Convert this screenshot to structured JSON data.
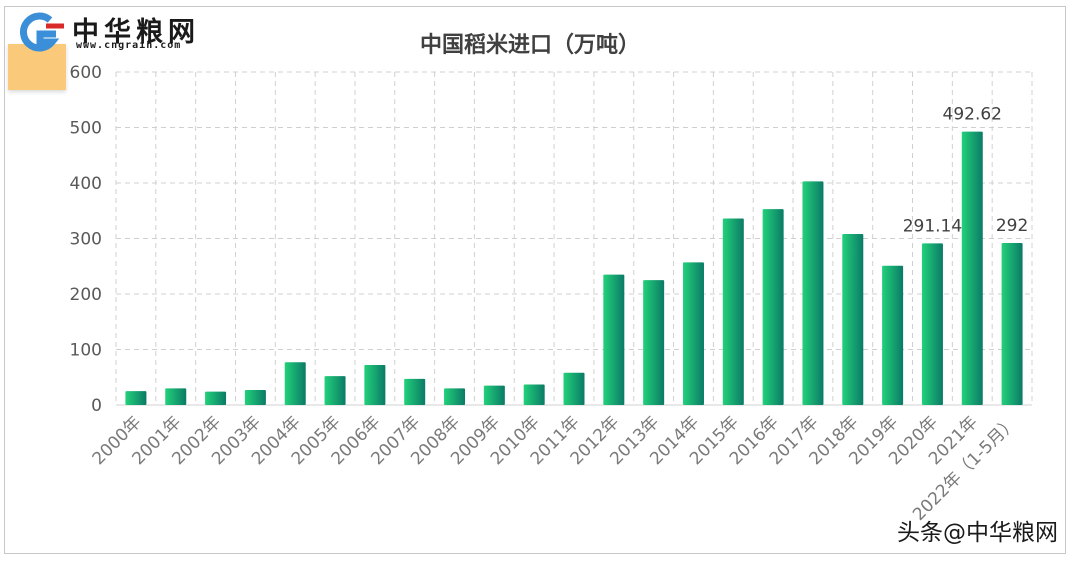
{
  "logo": {
    "name": "中华粮网",
    "url": "www.cngrain.com"
  },
  "watermark": "头条@中华粮网",
  "chart_data": {
    "type": "bar",
    "title": "中国稻米进口（万吨）",
    "xlabel": "",
    "ylabel": "",
    "ylim": [
      0,
      600
    ],
    "yticks": [
      0,
      100,
      200,
      300,
      400,
      500,
      600
    ],
    "grid": true,
    "legend": "none",
    "bar_color_light": "#22d17a",
    "bar_color_dark": "#0b7a66",
    "categories": [
      "2000年",
      "2001年",
      "2002年",
      "2003年",
      "2004年",
      "2005年",
      "2006年",
      "2007年",
      "2008年",
      "2009年",
      "2010年",
      "2011年",
      "2012年",
      "2013年",
      "2014年",
      "2015年",
      "2016年",
      "2017年",
      "2018年",
      "2019年",
      "2020年",
      "2021年",
      "2022年（1-5月）"
    ],
    "values": [
      25,
      30,
      24,
      27,
      77,
      52,
      72,
      47,
      30,
      35,
      37,
      58,
      235,
      225,
      257,
      336,
      353,
      403,
      308,
      251,
      291.14,
      492.62,
      292
    ],
    "data_labels": [
      {
        "index": 20,
        "text": "291.14"
      },
      {
        "index": 21,
        "text": "492.62"
      },
      {
        "index": 22,
        "text": "292"
      }
    ]
  }
}
